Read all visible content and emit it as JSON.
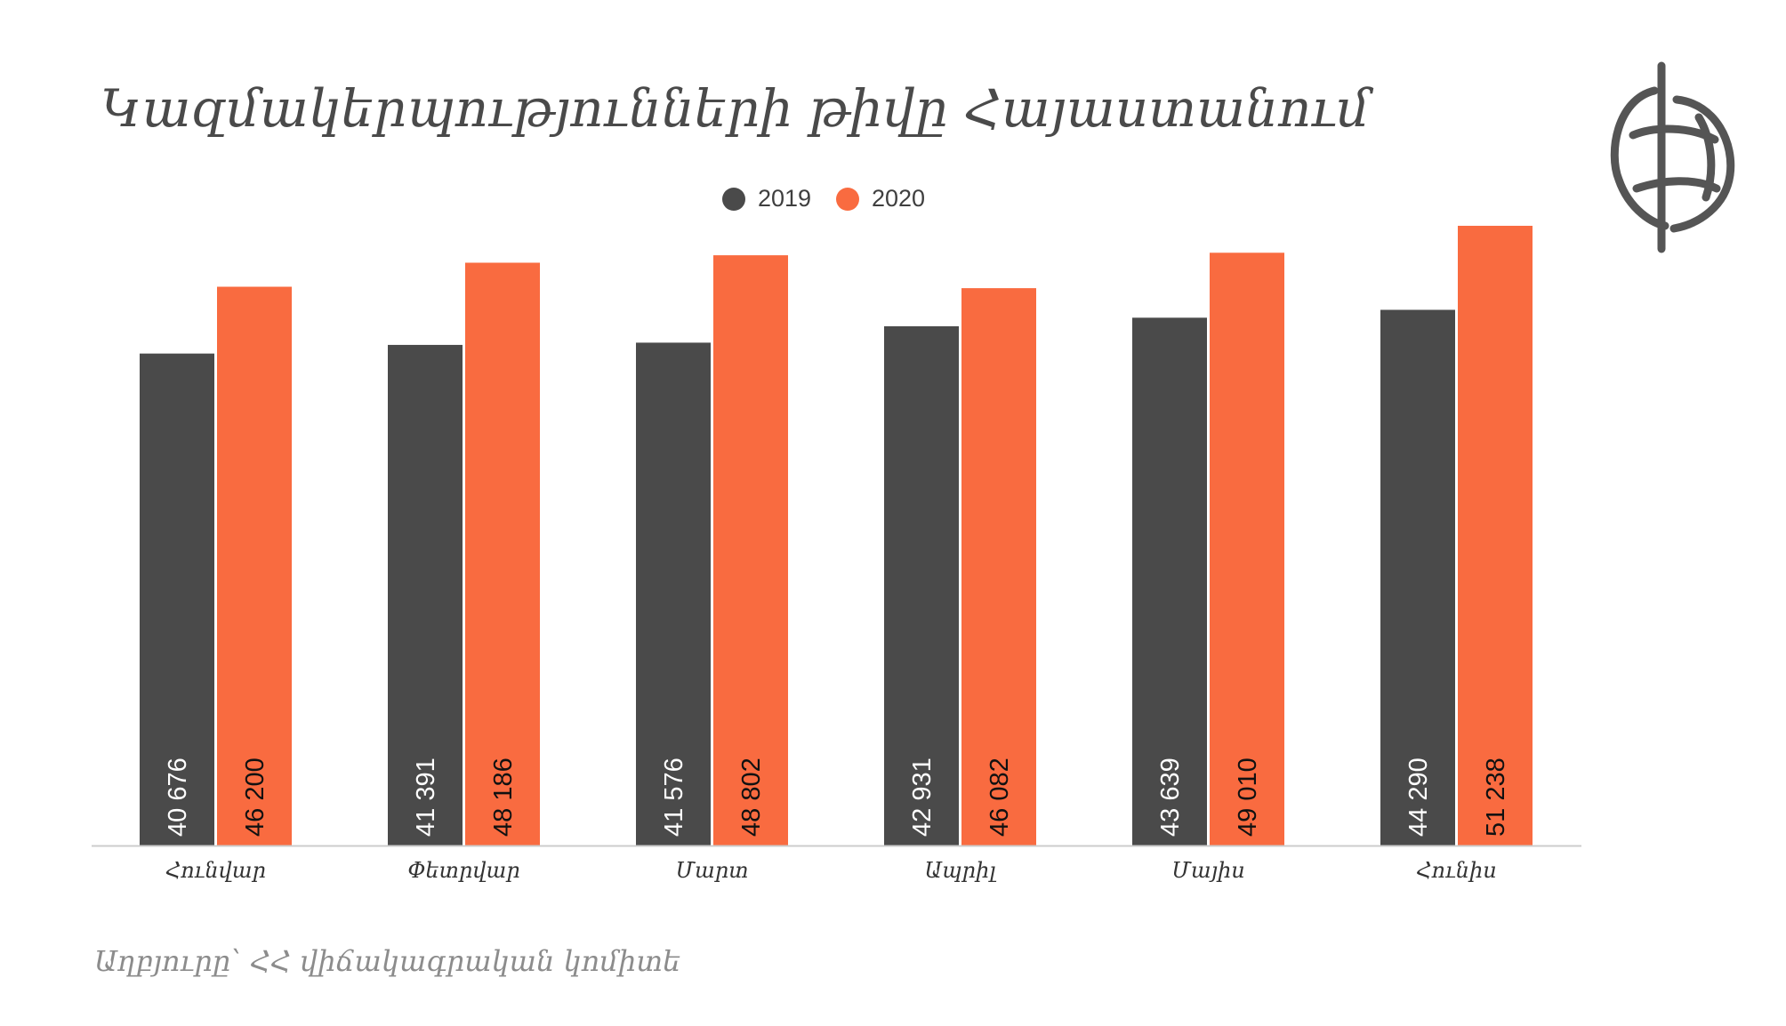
{
  "title": "Կազմակերպությունների թիվը Հայաստանում",
  "source": "Աղբյուրը՝ ՀՀ վիճակագրական կոմիտե",
  "colors": {
    "series_2019": "#4a4a4a",
    "series_2020": "#f96b40",
    "axis": "#cccccc"
  },
  "chart_data": {
    "type": "bar",
    "categories": [
      "Հունվար",
      "Փետրվար",
      "Մարտ",
      "Ապրիլ",
      "Մայիս",
      "Հունիս"
    ],
    "series": [
      {
        "name": "2019",
        "values": [
          40676,
          41391,
          41576,
          42931,
          43639,
          44290
        ],
        "labels": [
          "40 676",
          "41 391",
          "41 576",
          "42 931",
          "43 639",
          "44 290"
        ]
      },
      {
        "name": "2020",
        "values": [
          46200,
          48186,
          48802,
          46082,
          49010,
          51238
        ],
        "labels": [
          "46 200",
          "48 186",
          "48 802",
          "46 082",
          "49 010",
          "51 238"
        ]
      }
    ],
    "legend_position": "top",
    "ylim": [
      0,
      53000
    ],
    "grid": false
  }
}
